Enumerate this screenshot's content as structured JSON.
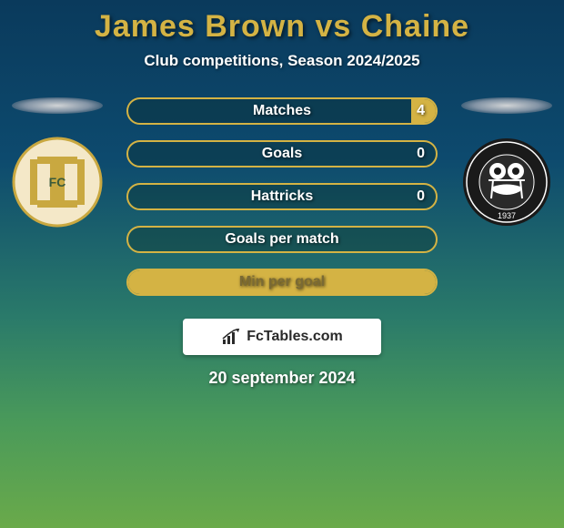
{
  "header": {
    "title": "James Brown vs Chaine",
    "subtitle": "Club competitions, Season 2024/2025"
  },
  "stats": [
    {
      "label": "Matches",
      "right_value": "4",
      "fill_side": "right",
      "fill_pct": 8
    },
    {
      "label": "Goals",
      "right_value": "0",
      "fill_side": "none",
      "fill_pct": 0
    },
    {
      "label": "Hattricks",
      "right_value": "0",
      "fill_side": "none",
      "fill_pct": 0
    },
    {
      "label": "Goals per match",
      "right_value": "",
      "fill_side": "none",
      "fill_pct": 0
    },
    {
      "label": "Min per goal",
      "right_value": "",
      "fill_side": "full",
      "fill_pct": 100
    }
  ],
  "branding": {
    "site_name": "FcTables.com"
  },
  "footer": {
    "date": "20 september 2024"
  },
  "colors": {
    "gold": "#d4b344",
    "dark_text": "#7a6a35",
    "white": "#ffffff"
  },
  "logos": {
    "left": {
      "bg": "#f4e8c8",
      "accent": "#c9a840",
      "label": "FC"
    },
    "right": {
      "bg": "#1a1a1a",
      "ring": "#ffffff",
      "center": "#2a2a2a",
      "year": "1937"
    }
  }
}
